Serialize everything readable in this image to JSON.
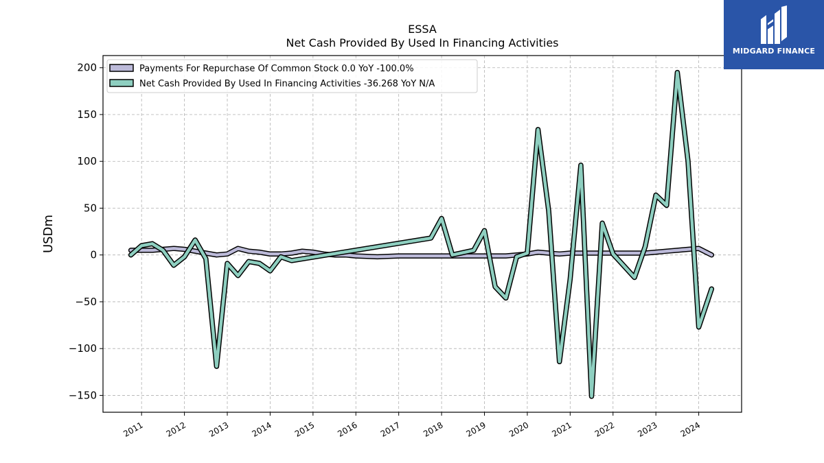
{
  "chart_data": {
    "type": "line",
    "title": "ESSA",
    "subtitle": "Net Cash Provided By Used In Financing Activities",
    "ylabel": "USDm",
    "xlabel": "",
    "xlim": [
      2010.1,
      2025.0
    ],
    "ylim": [
      -168,
      213
    ],
    "yticks": [
      -150,
      -100,
      -50,
      0,
      50,
      100,
      150,
      200
    ],
    "ytick_labels": [
      "−150",
      "−100",
      "−50",
      "0",
      "50",
      "100",
      "150",
      "200"
    ],
    "xticks": [
      2011,
      2012,
      2013,
      2014,
      2015,
      2016,
      2017,
      2018,
      2019,
      2020,
      2021,
      2022,
      2023,
      2024
    ],
    "xtick_labels": [
      "2011",
      "2012",
      "2013",
      "2014",
      "2015",
      "2016",
      "2017",
      "2018",
      "2019",
      "2020",
      "2021",
      "2022",
      "2023",
      "2024"
    ],
    "grid": true,
    "legend_position": "top-left",
    "legend": [
      "Payments For Repurchase Of Common Stock  0.0 YoY -100.0%",
      "Net Cash Provided By Used In Financing Activities  -36.268 YoY N/A"
    ],
    "series": [
      {
        "name": "Payments For Repurchase Of Common Stock",
        "color": "#bcbad9",
        "x": [
          2010.75,
          2011.0,
          2011.25,
          2011.5,
          2011.75,
          2012.0,
          2012.25,
          2012.5,
          2012.75,
          2013.0,
          2013.25,
          2013.5,
          2013.75,
          2014.0,
          2014.25,
          2014.5,
          2014.75,
          2015.0,
          2015.25,
          2015.5,
          2015.75,
          2016.0,
          2016.5,
          2017.0,
          2017.5,
          2017.75,
          2018.0,
          2018.25,
          2018.75,
          2019.0,
          2019.25,
          2019.5,
          2019.75,
          2020.0,
          2020.25,
          2020.5,
          2020.75,
          2021.0,
          2021.25,
          2021.5,
          2021.75,
          2022.0,
          2022.25,
          2022.5,
          2022.75,
          2023.0,
          2023.25,
          2023.5,
          2023.75,
          2024.0,
          2024.3
        ],
        "values": [
          5,
          5,
          5,
          6,
          7,
          6,
          4,
          2,
          0,
          1,
          7,
          4,
          3,
          1,
          1,
          2,
          4,
          3,
          1,
          0,
          0,
          -1,
          -2,
          -1,
          -1,
          -1,
          -1,
          -1,
          -1,
          -1,
          -1,
          -1,
          0,
          1,
          3,
          2,
          1,
          2,
          2,
          2,
          2,
          2,
          2,
          2,
          2,
          3,
          4,
          5,
          6,
          7,
          0
        ]
      },
      {
        "name": "Net Cash Provided By Used In Financing Activities",
        "color": "#8ecfc0",
        "x": [
          2010.75,
          2011.0,
          2011.25,
          2011.5,
          2011.75,
          2012.0,
          2012.25,
          2012.5,
          2012.75,
          2013.0,
          2013.25,
          2013.5,
          2013.75,
          2014.0,
          2014.25,
          2014.5,
          2017.75,
          2018.0,
          2018.25,
          2018.75,
          2019.0,
          2019.25,
          2019.5,
          2019.75,
          2020.0,
          2020.25,
          2020.5,
          2020.75,
          2021.0,
          2021.25,
          2021.5,
          2021.75,
          2022.0,
          2022.5,
          2022.75,
          2023.0,
          2023.25,
          2023.5,
          2023.75,
          2024.0,
          2024.3
        ],
        "values": [
          0,
          10,
          12,
          5,
          -11,
          -2,
          16,
          -4,
          -119,
          -9,
          -22,
          -7,
          -9,
          -17,
          -2,
          -6,
          18,
          39,
          0,
          5,
          26,
          -34,
          -46,
          -2,
          2,
          134,
          47,
          -114,
          -26,
          96,
          -151,
          34,
          1,
          -24,
          9,
          64,
          53,
          195,
          100,
          -77,
          -36.268
        ]
      }
    ]
  },
  "logo": {
    "text": "MIDGARD FINANCE"
  }
}
